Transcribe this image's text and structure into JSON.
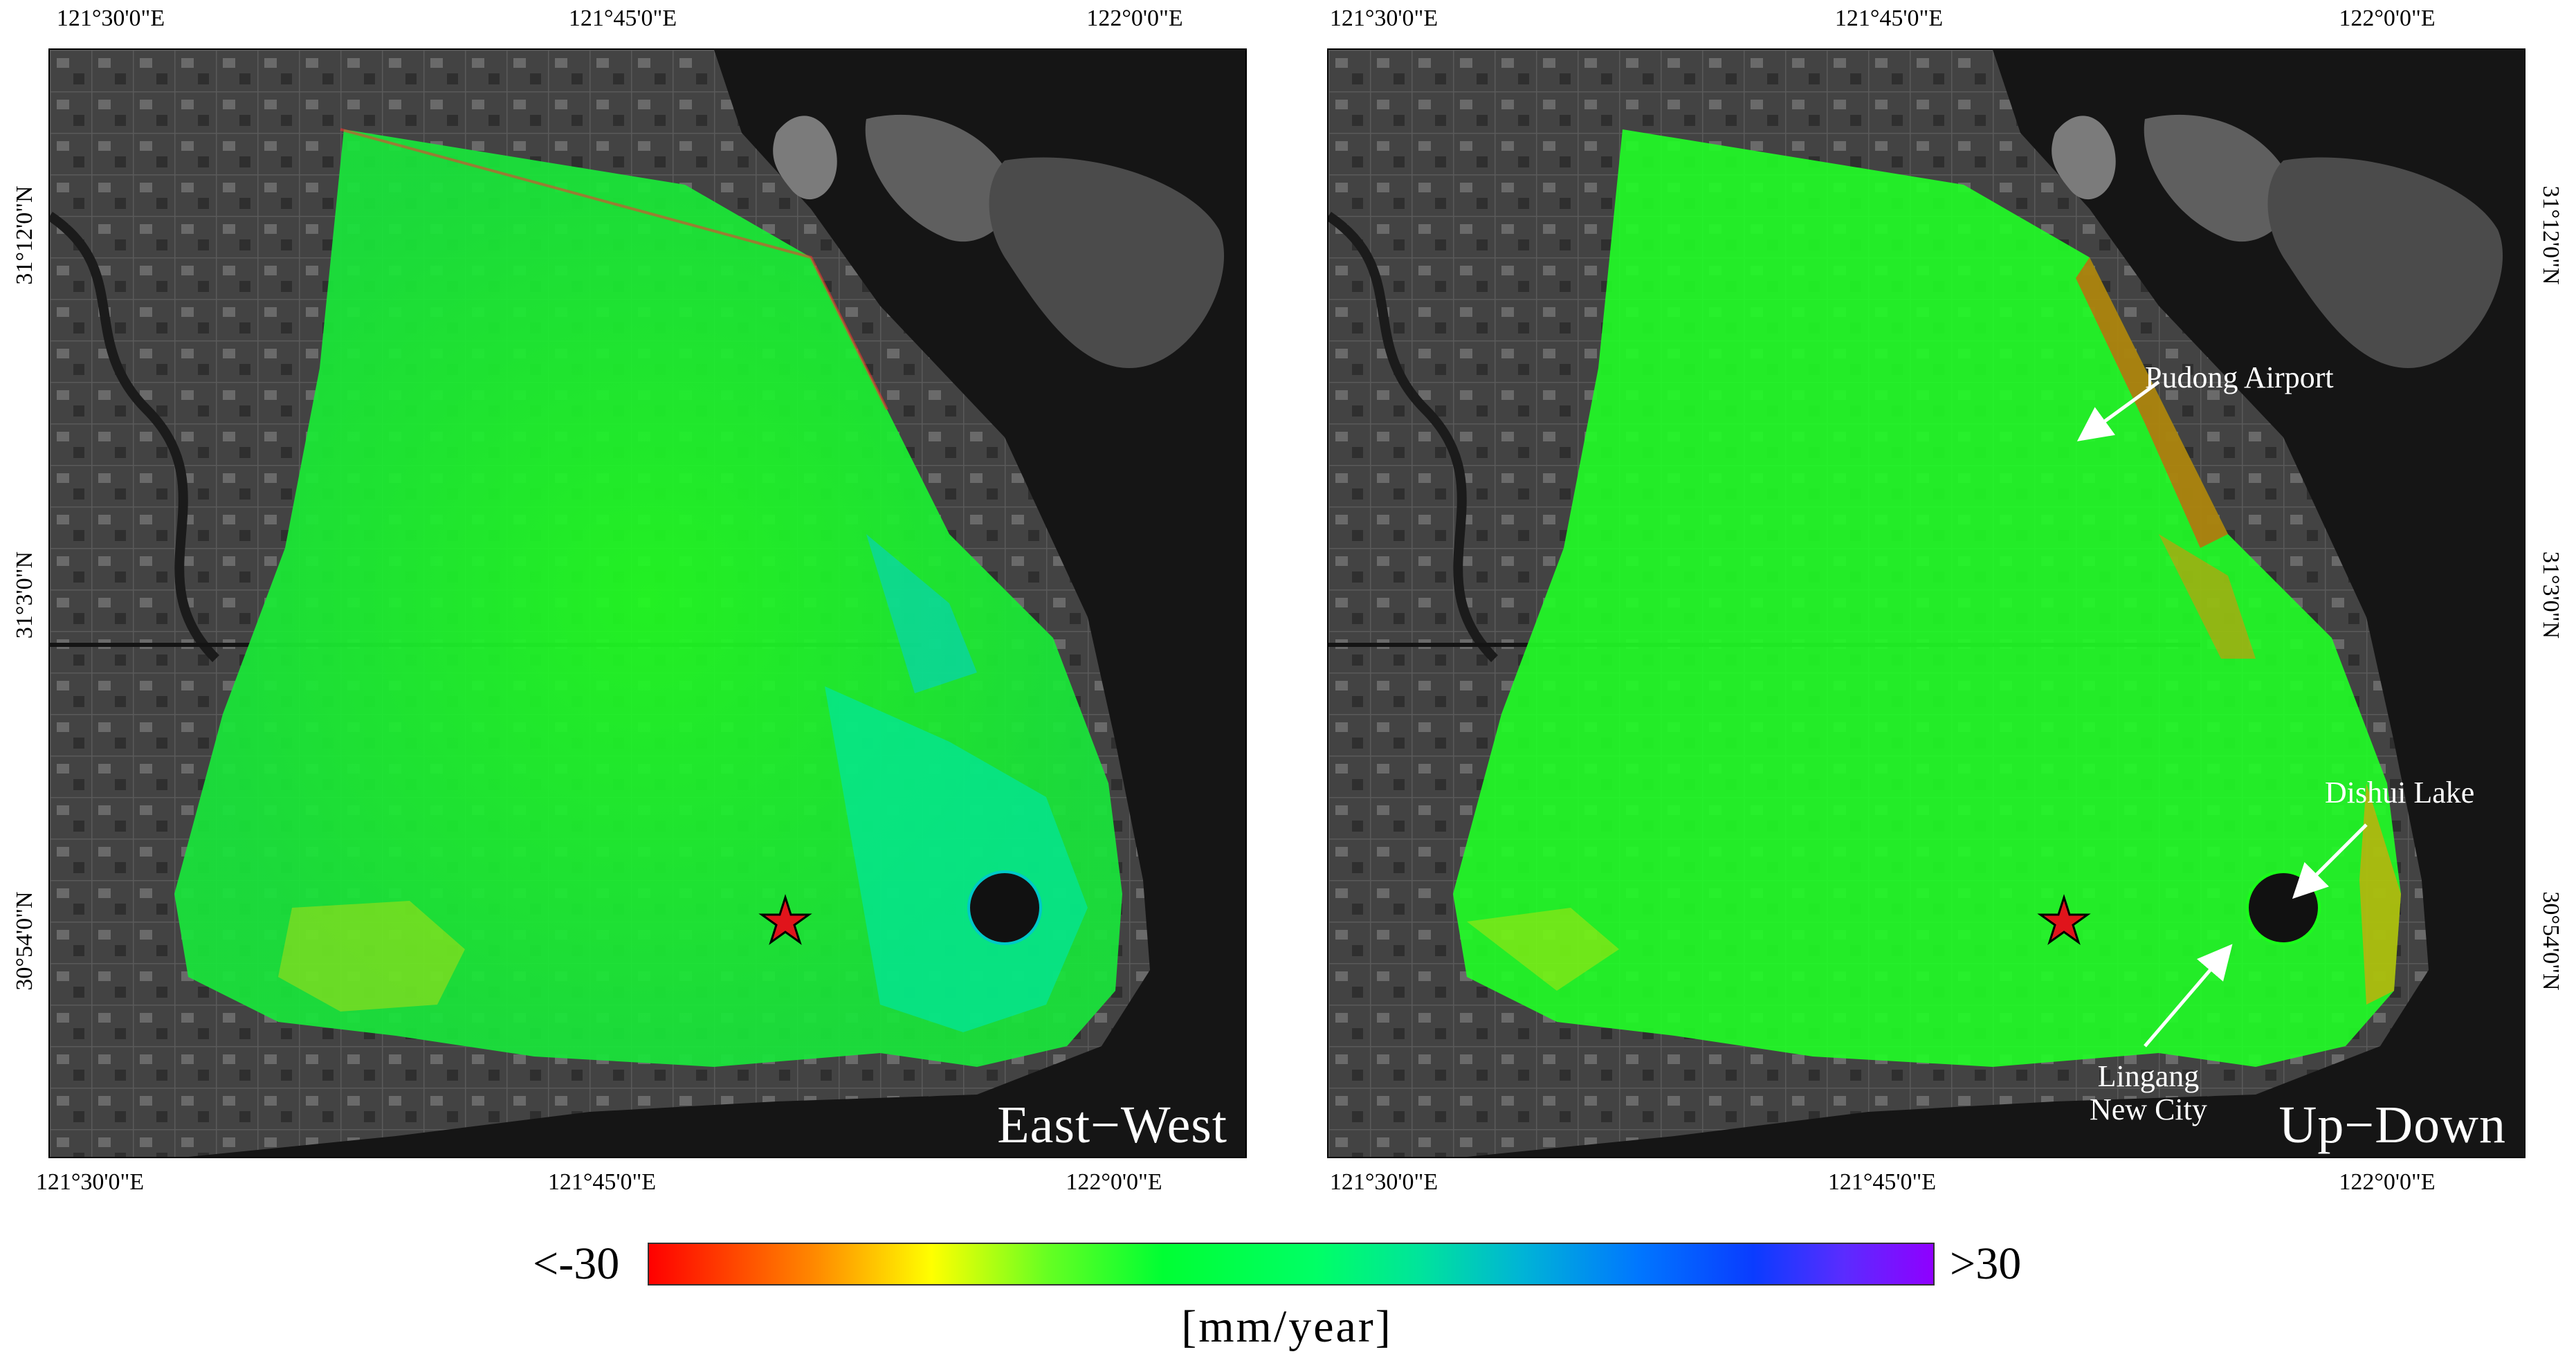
{
  "colors": {
    "land": "#3b3b3b",
    "water": "#141414",
    "deformation_stable": "#1cff2a",
    "uplift_high": "#8f00ff",
    "subsidence_high": "#ff0000",
    "star": "#e0141b"
  },
  "icons": [
    "star-marker-icon",
    "arrow-icon"
  ],
  "panels": [
    {
      "id": "east-west",
      "title": "East−West",
      "top_ticks": [
        "121°30'0\"E",
        "121°45'0\"E",
        "122°0'0\"E"
      ],
      "bottom_ticks": [
        "121°30'0\"E",
        "121°45'0\"E",
        "122°0'0\"E"
      ],
      "side_ticks": [
        "31°12'0\"N",
        "31°3'0\"N",
        "30°54'0\"N"
      ],
      "annotations": []
    },
    {
      "id": "up-down",
      "title": "Up−Down",
      "top_ticks": [
        "121°30'0\"E",
        "121°45'0\"E",
        "122°0'0\"E"
      ],
      "bottom_ticks": [
        "121°30'0\"E",
        "121°45'0\"E",
        "122°0'0\"E"
      ],
      "side_ticks": [
        "31°12'0\"N",
        "31°3'0\"N",
        "30°54'0\"N"
      ],
      "annotations": {
        "pudong_airport": "Pudong Airport",
        "dishui_lake": "Dishui Lake",
        "lingang_line1": "Lingang",
        "lingang_line2": "New City"
      }
    }
  ],
  "colorbar": {
    "min_label": "<-30",
    "max_label": ">30",
    "unit": "[mm/year]",
    "min_value": -30,
    "max_value": 30
  }
}
